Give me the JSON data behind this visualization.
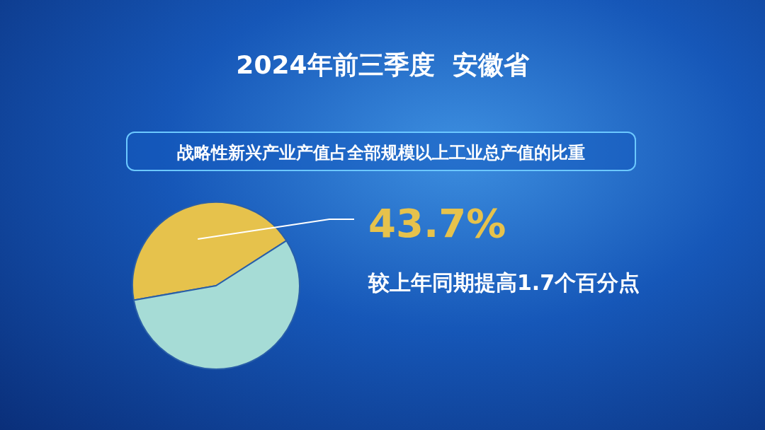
{
  "chart_data": {
    "type": "pie",
    "title": "2024年前三季度  安徽省",
    "subtitle": "战略性新兴产业产值占全部规模以上工业总产值的比重",
    "categories": [
      null,
      null
    ],
    "values": [
      43.7,
      56.3
    ],
    "colors": [
      "#e6c24c",
      "#a6dcd6"
    ],
    "value_labels": [
      "43.7%",
      null
    ],
    "annotations": [
      "较上年同期提高1.7个百分点"
    ],
    "legend": false
  }
}
